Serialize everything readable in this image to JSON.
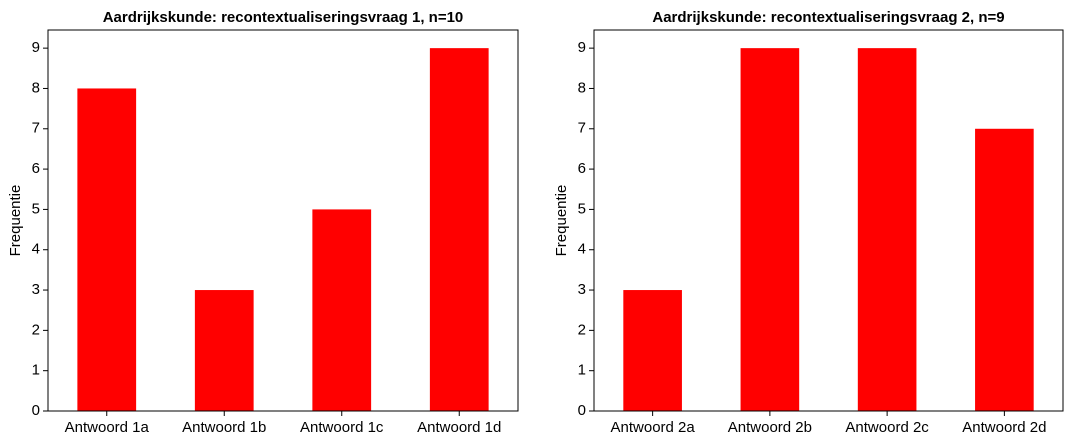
{
  "chart_data": [
    {
      "type": "bar",
      "title": "Aardrijkskunde: recontextualiseringsvraag 1, n=10",
      "y_label": "Frequentie",
      "categories": [
        "Antwoord 1a",
        "Antwoord 1b",
        "Antwoord 1c",
        "Antwoord 1d"
      ],
      "values": [
        8,
        3,
        5,
        9
      ],
      "color": "#ff0000",
      "ylim": [
        0,
        9.45
      ],
      "yticks": [
        0,
        1,
        2,
        3,
        4,
        5,
        6,
        7,
        8,
        9
      ],
      "grid": false
    },
    {
      "type": "bar",
      "title": "Aardrijkskunde: recontextualiseringsvraag 2, n=9",
      "y_label": "Frequentie",
      "categories": [
        "Antwoord 2a",
        "Antwoord 2b",
        "Antwoord 2c",
        "Antwoord 2d"
      ],
      "values": [
        3,
        9,
        9,
        7
      ],
      "color": "#ff0000",
      "ylim": [
        0,
        9.45
      ],
      "yticks": [
        0,
        1,
        2,
        3,
        4,
        5,
        6,
        7,
        8,
        9
      ],
      "grid": false
    }
  ]
}
